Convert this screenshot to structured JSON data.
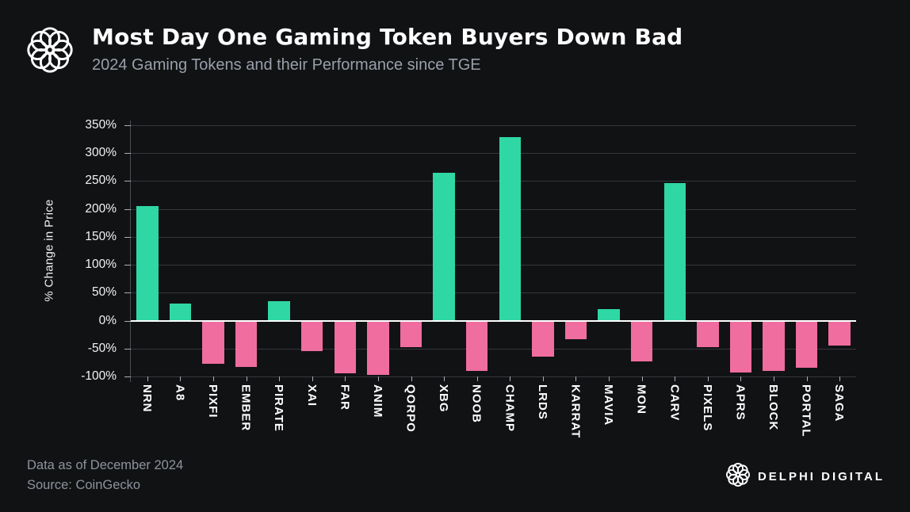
{
  "header": {
    "title": "Most Day One Gaming Token Buyers Down Bad",
    "subtitle": "2024 Gaming Tokens and their Performance since TGE"
  },
  "chart_data": {
    "type": "bar",
    "title": "Most Day One Gaming Token Buyers Down Bad",
    "subtitle": "2024 Gaming Tokens and their Performance since TGE",
    "ylabel": "% Change in Price",
    "xlabel": "",
    "ylim": [
      -100,
      350
    ],
    "ytick_step": 50,
    "ytick_suffix": "%",
    "grid": true,
    "legend": "none",
    "categories": [
      "NRN",
      "A8",
      "PIXFI",
      "EMBER",
      "PIRATE",
      "XAI",
      "FAR",
      "ANIM",
      "QORPO",
      "XBG",
      "NOOB",
      "CHAMP",
      "LRDS",
      "KARRAT",
      "MAVIA",
      "MON",
      "CARV",
      "PIXELS",
      "APRS",
      "BLOCK",
      "PORTAL",
      "SAGA"
    ],
    "values": [
      205,
      30,
      -78,
      -83,
      35,
      -55,
      -95,
      -97,
      -48,
      265,
      -90,
      328,
      -65,
      -33,
      20,
      -73,
      247,
      -48,
      -93,
      -90,
      -85,
      -45
    ],
    "color_rule": "positive bars green, negative bars pink"
  },
  "colors": {
    "background": "#111214",
    "positive": "#2fd7a4",
    "negative": "#ef6d9f",
    "grid": "#34373b",
    "zero_line": "#ffffff",
    "text_primary": "#ffffff",
    "text_secondary": "#98a0aa"
  },
  "footer": {
    "data_note": "Data as of December 2024",
    "source": "Source: CoinGecko",
    "brand": "DELPHI DIGITAL"
  },
  "icons": {
    "header_logo": "delphi-rosette-icon",
    "footer_logo": "delphi-rosette-icon"
  }
}
